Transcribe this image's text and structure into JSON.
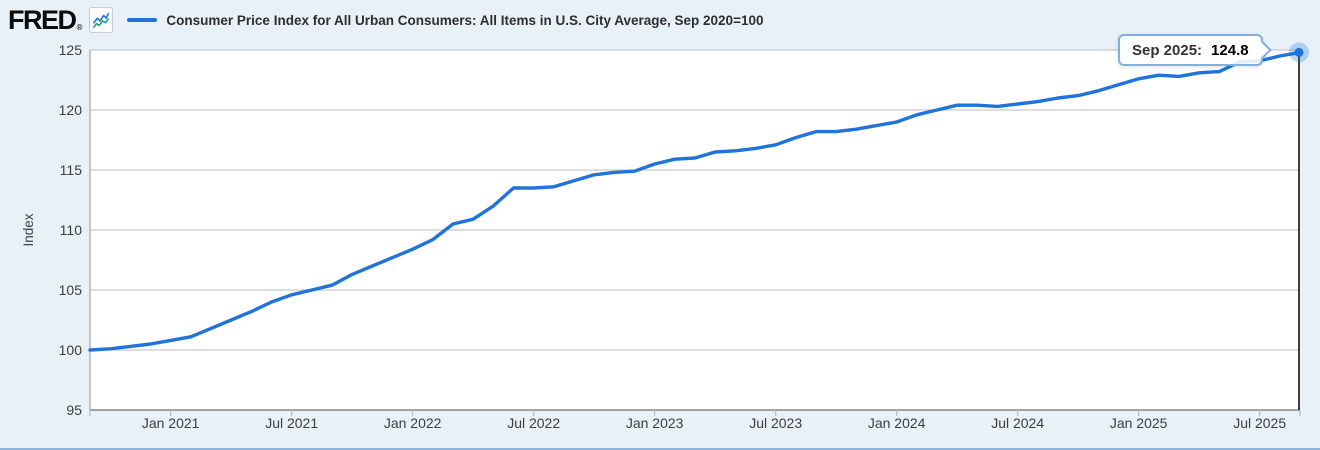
{
  "header": {
    "logo_text": "FRED",
    "registered_mark": "®"
  },
  "icons": {
    "logo_chart_icon": "line-chart-icon",
    "legend_swatch": "series-line-swatch"
  },
  "tooltip": {
    "label": "Sep 2025:",
    "value": "124.8"
  },
  "colors": {
    "line": "#1f73da",
    "page_bg": "#e8f1f8",
    "plot_bg": "#ffffff",
    "grid": "#c9c9c9",
    "axis_bottom": "#6e6e6e",
    "axis_left": "#a5a5a5",
    "tick_mark": "#aebdc9",
    "crosshair": "#111111",
    "tooltip_border": "#7fb0de",
    "icon_blue": "#2273d0",
    "icon_green": "#21a179"
  },
  "chart_data": {
    "type": "line",
    "title": "Consumer Price Index for All Urban Consumers: All Items in U.S. City Average, Sep 2020=100",
    "ylabel": "Index",
    "ylim": [
      95,
      125
    ],
    "grid": true,
    "legend_position": "top",
    "frequency": "monthly",
    "x": [
      "Sep 2020",
      "Oct 2020",
      "Nov 2020",
      "Dec 2020",
      "Jan 2021",
      "Feb 2021",
      "Mar 2021",
      "Apr 2021",
      "May 2021",
      "Jun 2021",
      "Jul 2021",
      "Aug 2021",
      "Sep 2021",
      "Oct 2021",
      "Nov 2021",
      "Dec 2021",
      "Jan 2022",
      "Feb 2022",
      "Mar 2022",
      "Apr 2022",
      "May 2022",
      "Jun 2022",
      "Jul 2022",
      "Aug 2022",
      "Sep 2022",
      "Oct 2022",
      "Nov 2022",
      "Dec 2022",
      "Jan 2023",
      "Feb 2023",
      "Mar 2023",
      "Apr 2023",
      "May 2023",
      "Jun 2023",
      "Jul 2023",
      "Aug 2023",
      "Sep 2023",
      "Oct 2023",
      "Nov 2023",
      "Dec 2023",
      "Jan 2024",
      "Feb 2024",
      "Mar 2024",
      "Apr 2024",
      "May 2024",
      "Jun 2024",
      "Jul 2024",
      "Aug 2024",
      "Sep 2024",
      "Oct 2024",
      "Nov 2024",
      "Dec 2024",
      "Jan 2025",
      "Feb 2025",
      "Mar 2025",
      "Apr 2025",
      "May 2025",
      "Jun 2025",
      "Jul 2025",
      "Aug 2025",
      "Sep 2025"
    ],
    "values": [
      100.0,
      100.1,
      100.3,
      100.5,
      100.8,
      101.1,
      101.8,
      102.5,
      103.2,
      104.0,
      104.6,
      105.0,
      105.4,
      106.3,
      107.0,
      107.7,
      108.4,
      109.2,
      110.5,
      110.9,
      112.0,
      113.5,
      113.5,
      113.6,
      114.1,
      114.6,
      114.8,
      114.9,
      115.5,
      115.9,
      116.0,
      116.5,
      116.6,
      116.8,
      117.1,
      117.7,
      118.2,
      118.2,
      118.4,
      118.7,
      119.0,
      119.6,
      120.0,
      120.4,
      120.4,
      120.3,
      120.5,
      120.7,
      121.0,
      121.2,
      121.6,
      122.1,
      122.6,
      122.9,
      122.8,
      123.1,
      123.2,
      124.0,
      124.1,
      124.5,
      124.8
    ],
    "ytick_values": [
      125,
      120,
      115,
      110,
      105,
      100,
      95
    ],
    "xtick_labels": [
      "Jan 2021",
      "Jul 2021",
      "Jan 2022",
      "Jul 2022",
      "Jan 2023",
      "Jul 2023",
      "Jan 2024",
      "Jul 2024",
      "Jan 2025",
      "Jul 2025"
    ],
    "last_point": {
      "label": "Sep 2025",
      "value": 124.8
    }
  }
}
